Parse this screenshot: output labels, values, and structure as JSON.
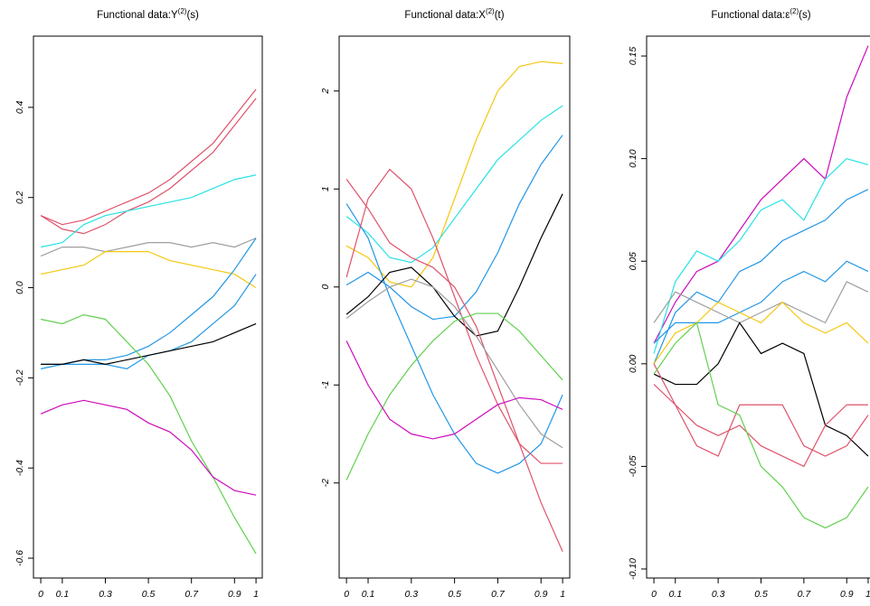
{
  "chart_data": [
    {
      "type": "line",
      "title": {
        "base": "Functional data:Y",
        "sup": "(2)",
        "tail": "(s)"
      },
      "x": [
        0,
        0.1,
        0.2,
        0.3,
        0.4,
        0.5,
        0.6,
        0.7,
        0.8,
        0.9,
        1
      ],
      "xlim": [
        -0.034,
        1.029
      ],
      "ylim": [
        -0.644,
        0.558
      ],
      "xticks": [
        0,
        0.1,
        0.3,
        0.5,
        0.7,
        0.9,
        1
      ],
      "yticks": [
        -0.6,
        -0.4,
        -0.2,
        {
          "value": 0,
          "label": "0.0"
        },
        0.2,
        0.4
      ],
      "series": [
        {
          "color": "#DF536B",
          "values": [
            0.16,
            0.14,
            0.15,
            0.17,
            0.19,
            0.21,
            0.24,
            0.28,
            0.32,
            0.38,
            0.44
          ]
        },
        {
          "color": "#DF536B",
          "values": [
            0.16,
            0.13,
            0.12,
            0.14,
            0.17,
            0.19,
            0.22,
            0.26,
            0.3,
            0.36,
            0.42
          ]
        },
        {
          "color": "#28E2E5",
          "values": [
            0.09,
            0.1,
            0.14,
            0.16,
            0.17,
            0.18,
            0.19,
            0.2,
            0.22,
            0.24,
            0.25
          ]
        },
        {
          "color": "#9E9E9E",
          "values": [
            0.07,
            0.09,
            0.09,
            0.08,
            0.09,
            0.1,
            0.1,
            0.09,
            0.1,
            0.09,
            0.11
          ]
        },
        {
          "color": "#F5C710",
          "values": [
            0.03,
            0.04,
            0.05,
            0.08,
            0.08,
            0.08,
            0.06,
            0.05,
            0.04,
            0.03,
            0.0
          ]
        },
        {
          "color": "#2297E6",
          "values": [
            -0.17,
            -0.17,
            -0.16,
            -0.16,
            -0.15,
            -0.13,
            -0.1,
            -0.06,
            -0.02,
            0.04,
            0.11
          ]
        },
        {
          "color": "#2297E6",
          "values": [
            -0.18,
            -0.17,
            -0.17,
            -0.17,
            -0.18,
            -0.15,
            -0.14,
            -0.12,
            -0.08,
            -0.04,
            0.03
          ]
        },
        {
          "color": "#000000",
          "values": [
            -0.17,
            -0.17,
            -0.16,
            -0.17,
            -0.16,
            -0.15,
            -0.14,
            -0.13,
            -0.12,
            -0.1,
            -0.08
          ]
        },
        {
          "color": "#61D04F",
          "values": [
            -0.07,
            -0.08,
            -0.06,
            -0.07,
            -0.12,
            -0.17,
            -0.24,
            -0.34,
            -0.42,
            -0.51,
            -0.59
          ]
        },
        {
          "color": "#CD0BBC",
          "values": [
            -0.28,
            -0.26,
            -0.25,
            -0.26,
            -0.27,
            -0.3,
            -0.32,
            -0.36,
            -0.42,
            -0.45,
            -0.46
          ]
        }
      ]
    },
    {
      "type": "line",
      "title": {
        "base": "Functional data:X",
        "sup": "(2)",
        "tail": "(t)"
      },
      "x": [
        0,
        0.1,
        0.2,
        0.3,
        0.4,
        0.5,
        0.6,
        0.7,
        0.8,
        0.9,
        1
      ],
      "xlim": [
        -0.034,
        1.033
      ],
      "ylim": [
        -2.97,
        2.56
      ],
      "xticks": [
        0,
        0.1,
        0.3,
        0.5,
        0.7,
        0.9,
        1
      ],
      "yticks": [
        -2,
        -1,
        0,
        1,
        2
      ],
      "series": [
        {
          "color": "#F5C710",
          "values": [
            0.42,
            0.3,
            0.05,
            0.0,
            0.3,
            0.9,
            1.5,
            2.0,
            2.25,
            2.3,
            2.28
          ]
        },
        {
          "color": "#28E2E5",
          "values": [
            0.72,
            0.55,
            0.3,
            0.25,
            0.4,
            0.7,
            1.0,
            1.3,
            1.5,
            1.7,
            1.85
          ]
        },
        {
          "color": "#2297E6",
          "values": [
            0.85,
            0.5,
            -0.1,
            -0.6,
            -1.1,
            -1.5,
            -1.8,
            -1.9,
            -1.8,
            -1.6,
            -1.1
          ]
        },
        {
          "color": "#2297E6",
          "values": [
            0.02,
            0.15,
            0.0,
            -0.2,
            -0.33,
            -0.3,
            -0.05,
            0.35,
            0.85,
            1.25,
            1.55
          ]
        },
        {
          "color": "#000000",
          "values": [
            -0.28,
            -0.1,
            0.15,
            0.2,
            0.0,
            -0.3,
            -0.5,
            -0.45,
            0.0,
            0.5,
            0.95
          ]
        },
        {
          "color": "#DF536B",
          "values": [
            0.1,
            0.9,
            1.2,
            1.0,
            0.5,
            -0.1,
            -0.7,
            -1.2,
            -1.6,
            -1.8,
            -1.8
          ]
        },
        {
          "color": "#DF536B",
          "values": [
            1.1,
            0.8,
            0.45,
            0.3,
            0.2,
            0.0,
            -0.4,
            -1.0,
            -1.6,
            -2.2,
            -2.7
          ]
        },
        {
          "color": "#9E9E9E",
          "values": [
            -0.32,
            -0.15,
            0.0,
            0.08,
            0.0,
            -0.2,
            -0.5,
            -0.85,
            -1.2,
            -1.5,
            -1.64
          ]
        },
        {
          "color": "#61D04F",
          "values": [
            -1.97,
            -1.5,
            -1.1,
            -0.8,
            -0.55,
            -0.35,
            -0.27,
            -0.27,
            -0.45,
            -0.7,
            -0.95
          ]
        },
        {
          "color": "#CD0BBC",
          "values": [
            -0.55,
            -1.0,
            -1.35,
            -1.5,
            -1.55,
            -1.5,
            -1.35,
            -1.2,
            -1.13,
            -1.15,
            -1.25
          ]
        }
      ]
    },
    {
      "type": "line",
      "title": {
        "base": "Functional data:ε",
        "sup": "(2)",
        "tail": "(s)"
      },
      "x": [
        0,
        0.1,
        0.2,
        0.3,
        0.4,
        0.5,
        0.6,
        0.7,
        0.8,
        0.9,
        1
      ],
      "xlim": [
        -0.034,
        1.034
      ],
      "ylim": [
        -0.1044,
        0.1597
      ],
      "xticks": [
        0,
        0.1,
        0.3,
        0.5,
        0.7,
        0.9,
        1
      ],
      "yticks": [
        {
          "value": -0.1,
          "label": "-0.10"
        },
        -0.05,
        {
          "value": 0,
          "label": "0.00"
        },
        0.05,
        {
          "value": 0.1,
          "label": "0.10"
        },
        0.15
      ],
      "series": [
        {
          "color": "#CD0BBC",
          "values": [
            0.01,
            0.03,
            0.045,
            0.05,
            0.065,
            0.08,
            0.09,
            0.1,
            0.09,
            0.13,
            0.155
          ]
        },
        {
          "color": "#28E2E5",
          "values": [
            0.005,
            0.04,
            0.055,
            0.05,
            0.06,
            0.075,
            0.08,
            0.07,
            0.09,
            0.1,
            0.097
          ]
        },
        {
          "color": "#2297E6",
          "values": [
            0.0,
            0.025,
            0.035,
            0.03,
            0.045,
            0.05,
            0.06,
            0.065,
            0.07,
            0.08,
            0.085
          ]
        },
        {
          "color": "#2297E6",
          "values": [
            0.01,
            0.02,
            0.02,
            0.02,
            0.025,
            0.03,
            0.04,
            0.045,
            0.04,
            0.05,
            0.045
          ]
        },
        {
          "color": "#9E9E9E",
          "values": [
            0.02,
            0.035,
            0.03,
            0.025,
            0.02,
            0.025,
            0.03,
            0.025,
            0.02,
            0.04,
            0.035
          ]
        },
        {
          "color": "#F5C710",
          "values": [
            0.0,
            0.015,
            0.02,
            0.03,
            0.025,
            0.02,
            0.03,
            0.02,
            0.015,
            0.02,
            0.01
          ]
        },
        {
          "color": "#000000",
          "values": [
            -0.005,
            -0.01,
            -0.01,
            0.0,
            0.02,
            0.005,
            0.01,
            0.005,
            -0.03,
            -0.035,
            -0.045
          ]
        },
        {
          "color": "#DF536B",
          "values": [
            -0.01,
            -0.02,
            -0.03,
            -0.035,
            -0.03,
            -0.04,
            -0.045,
            -0.05,
            -0.03,
            -0.02,
            -0.02
          ]
        },
        {
          "color": "#DF536B",
          "values": [
            0.0,
            -0.02,
            -0.04,
            -0.045,
            -0.02,
            -0.02,
            -0.02,
            -0.04,
            -0.045,
            -0.04,
            -0.025
          ]
        },
        {
          "color": "#61D04F",
          "values": [
            -0.005,
            0.01,
            0.02,
            -0.02,
            -0.025,
            -0.05,
            -0.06,
            -0.075,
            -0.08,
            -0.075,
            -0.06
          ]
        }
      ]
    }
  ]
}
